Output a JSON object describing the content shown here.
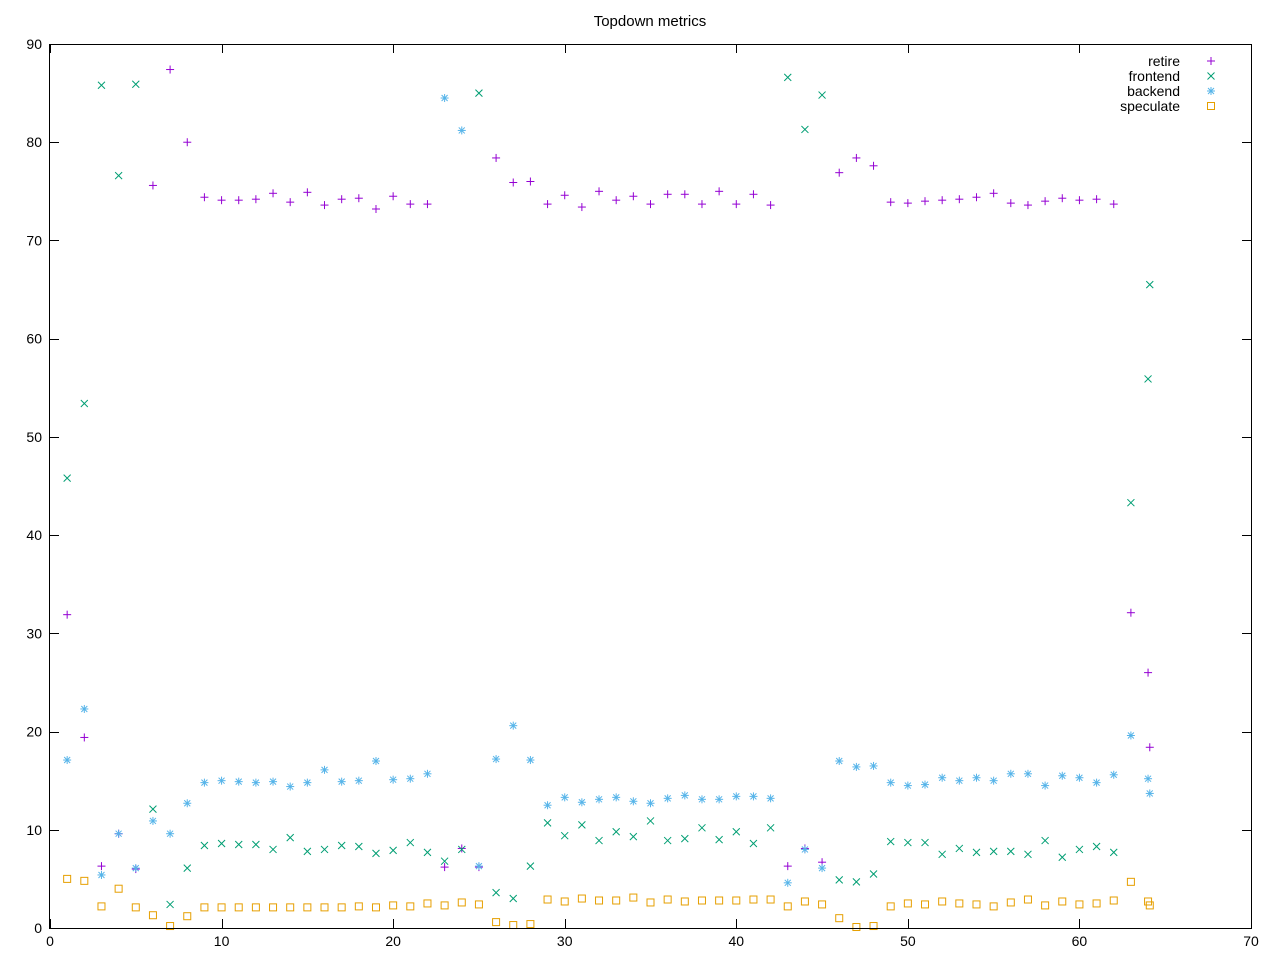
{
  "chart_data": {
    "type": "scatter",
    "title": "Topdown metrics",
    "xlabel": "",
    "ylabel": "",
    "xlim": [
      0,
      70
    ],
    "ylim": [
      0,
      90
    ],
    "x_ticks": [
      0,
      10,
      20,
      30,
      40,
      50,
      60,
      70
    ],
    "y_ticks": [
      0,
      10,
      20,
      30,
      40,
      50,
      60,
      70,
      80,
      90
    ],
    "grid": false,
    "legend_position": "top-right",
    "series": [
      {
        "name": "retire",
        "marker": "plus",
        "color": "#9400d3",
        "points": [
          [
            1,
            31.9
          ],
          [
            2,
            19.4
          ],
          [
            3,
            6.3
          ],
          [
            4,
            9.6
          ],
          [
            5,
            6.0
          ],
          [
            6,
            75.6
          ],
          [
            7,
            87.4
          ],
          [
            8,
            80.0
          ],
          [
            9,
            74.4
          ],
          [
            10,
            74.1
          ],
          [
            11,
            74.1
          ],
          [
            12,
            74.2
          ],
          [
            13,
            74.8
          ],
          [
            14,
            73.9
          ],
          [
            15,
            74.9
          ],
          [
            16,
            73.6
          ],
          [
            17,
            74.2
          ],
          [
            18,
            74.3
          ],
          [
            19,
            73.2
          ],
          [
            20,
            74.5
          ],
          [
            21,
            73.7
          ],
          [
            22,
            73.7
          ],
          [
            23,
            6.2
          ],
          [
            24,
            8.1
          ],
          [
            25,
            6.2
          ],
          [
            26,
            78.4
          ],
          [
            27,
            75.9
          ],
          [
            28,
            76.0
          ],
          [
            29,
            73.7
          ],
          [
            30,
            74.6
          ],
          [
            31,
            73.4
          ],
          [
            32,
            75.0
          ],
          [
            33,
            74.1
          ],
          [
            34,
            74.5
          ],
          [
            35,
            73.7
          ],
          [
            36,
            74.7
          ],
          [
            37,
            74.7
          ],
          [
            38,
            73.7
          ],
          [
            39,
            75.0
          ],
          [
            40,
            73.7
          ],
          [
            41,
            74.7
          ],
          [
            42,
            73.6
          ],
          [
            43,
            6.3
          ],
          [
            44,
            8.1
          ],
          [
            45,
            6.7
          ],
          [
            46,
            76.9
          ],
          [
            47,
            78.4
          ],
          [
            48,
            77.6
          ],
          [
            49,
            73.9
          ],
          [
            50,
            73.8
          ],
          [
            51,
            74.0
          ],
          [
            52,
            74.1
          ],
          [
            53,
            74.2
          ],
          [
            54,
            74.4
          ],
          [
            55,
            74.8
          ],
          [
            56,
            73.8
          ],
          [
            57,
            73.6
          ],
          [
            58,
            74.0
          ],
          [
            59,
            74.3
          ],
          [
            60,
            74.1
          ],
          [
            61,
            74.2
          ],
          [
            62,
            73.7
          ],
          [
            63,
            32.1
          ],
          [
            64,
            26.0
          ],
          [
            64.1,
            18.4
          ]
        ]
      },
      {
        "name": "frontend",
        "marker": "cross",
        "color": "#009e73",
        "points": [
          [
            1,
            45.8
          ],
          [
            2,
            53.4
          ],
          [
            3,
            85.8
          ],
          [
            4,
            76.6
          ],
          [
            5,
            85.9
          ],
          [
            6,
            12.1
          ],
          [
            7,
            2.4
          ],
          [
            8,
            6.1
          ],
          [
            9,
            8.4
          ],
          [
            10,
            8.6
          ],
          [
            11,
            8.5
          ],
          [
            12,
            8.5
          ],
          [
            13,
            8.0
          ],
          [
            14,
            9.2
          ],
          [
            15,
            7.8
          ],
          [
            16,
            8.0
          ],
          [
            17,
            8.4
          ],
          [
            18,
            8.3
          ],
          [
            19,
            7.6
          ],
          [
            20,
            7.9
          ],
          [
            21,
            8.7
          ],
          [
            22,
            7.7
          ],
          [
            23,
            6.8
          ],
          [
            24,
            8.0
          ],
          [
            25,
            85.0
          ],
          [
            26,
            3.6
          ],
          [
            27,
            3.0
          ],
          [
            28,
            6.3
          ],
          [
            29,
            10.7
          ],
          [
            30,
            9.4
          ],
          [
            31,
            10.5
          ],
          [
            32,
            8.9
          ],
          [
            33,
            9.8
          ],
          [
            34,
            9.3
          ],
          [
            35,
            10.9
          ],
          [
            36,
            8.9
          ],
          [
            37,
            9.1
          ],
          [
            38,
            10.2
          ],
          [
            39,
            9.0
          ],
          [
            40,
            9.8
          ],
          [
            41,
            8.6
          ],
          [
            42,
            10.2
          ],
          [
            43,
            86.6
          ],
          [
            44,
            81.3
          ],
          [
            45,
            84.8
          ],
          [
            46,
            4.9
          ],
          [
            47,
            4.7
          ],
          [
            48,
            5.5
          ],
          [
            49,
            8.8
          ],
          [
            50,
            8.7
          ],
          [
            51,
            8.7
          ],
          [
            52,
            7.5
          ],
          [
            53,
            8.1
          ],
          [
            54,
            7.7
          ],
          [
            55,
            7.8
          ],
          [
            56,
            7.8
          ],
          [
            57,
            7.5
          ],
          [
            58,
            8.9
          ],
          [
            59,
            7.2
          ],
          [
            60,
            8.0
          ],
          [
            61,
            8.3
          ],
          [
            62,
            7.7
          ],
          [
            63,
            43.3
          ],
          [
            64,
            55.9
          ],
          [
            64.1,
            65.5
          ]
        ]
      },
      {
        "name": "backend",
        "marker": "star",
        "color": "#56b4e9",
        "points": [
          [
            1,
            17.1
          ],
          [
            2,
            22.3
          ],
          [
            3,
            5.4
          ],
          [
            4,
            9.6
          ],
          [
            5,
            6.1
          ],
          [
            6,
            10.9
          ],
          [
            7,
            9.6
          ],
          [
            8,
            12.7
          ],
          [
            9,
            14.8
          ],
          [
            10,
            15.0
          ],
          [
            11,
            14.9
          ],
          [
            12,
            14.8
          ],
          [
            13,
            14.9
          ],
          [
            14,
            14.4
          ],
          [
            15,
            14.8
          ],
          [
            16,
            16.1
          ],
          [
            17,
            14.9
          ],
          [
            18,
            15.0
          ],
          [
            19,
            17.0
          ],
          [
            20,
            15.1
          ],
          [
            21,
            15.2
          ],
          [
            22,
            15.7
          ],
          [
            23,
            84.5
          ],
          [
            24,
            81.2
          ],
          [
            25,
            6.3
          ],
          [
            26,
            17.2
          ],
          [
            27,
            20.6
          ],
          [
            28,
            17.1
          ],
          [
            29,
            12.5
          ],
          [
            30,
            13.3
          ],
          [
            31,
            12.8
          ],
          [
            32,
            13.1
          ],
          [
            33,
            13.3
          ],
          [
            34,
            12.9
          ],
          [
            35,
            12.7
          ],
          [
            36,
            13.2
          ],
          [
            37,
            13.5
          ],
          [
            38,
            13.1
          ],
          [
            39,
            13.1
          ],
          [
            40,
            13.4
          ],
          [
            41,
            13.4
          ],
          [
            42,
            13.2
          ],
          [
            43,
            4.6
          ],
          [
            44,
            8.0
          ],
          [
            45,
            6.1
          ],
          [
            46,
            17.0
          ],
          [
            47,
            16.4
          ],
          [
            48,
            16.5
          ],
          [
            49,
            14.8
          ],
          [
            50,
            14.5
          ],
          [
            51,
            14.6
          ],
          [
            52,
            15.3
          ],
          [
            53,
            15.0
          ],
          [
            54,
            15.3
          ],
          [
            55,
            15.0
          ],
          [
            56,
            15.7
          ],
          [
            57,
            15.7
          ],
          [
            58,
            14.5
          ],
          [
            59,
            15.5
          ],
          [
            60,
            15.3
          ],
          [
            61,
            14.8
          ],
          [
            62,
            15.6
          ],
          [
            63,
            19.6
          ],
          [
            64,
            15.2
          ],
          [
            64.1,
            13.7
          ]
        ]
      },
      {
        "name": "speculate",
        "marker": "square",
        "color": "#e69f00",
        "points": [
          [
            1,
            5.0
          ],
          [
            2,
            4.8
          ],
          [
            3,
            2.2
          ],
          [
            4,
            4.0
          ],
          [
            5,
            2.1
          ],
          [
            6,
            1.3
          ],
          [
            7,
            0.2
          ],
          [
            8,
            1.2
          ],
          [
            9,
            2.1
          ],
          [
            10,
            2.1
          ],
          [
            11,
            2.1
          ],
          [
            12,
            2.1
          ],
          [
            13,
            2.1
          ],
          [
            14,
            2.1
          ],
          [
            15,
            2.1
          ],
          [
            16,
            2.1
          ],
          [
            17,
            2.1
          ],
          [
            18,
            2.2
          ],
          [
            19,
            2.1
          ],
          [
            20,
            2.3
          ],
          [
            21,
            2.2
          ],
          [
            22,
            2.5
          ],
          [
            23,
            2.3
          ],
          [
            24,
            2.6
          ],
          [
            25,
            2.4
          ],
          [
            26,
            0.6
          ],
          [
            27,
            0.3
          ],
          [
            28,
            0.4
          ],
          [
            29,
            2.9
          ],
          [
            30,
            2.7
          ],
          [
            31,
            3.0
          ],
          [
            32,
            2.8
          ],
          [
            33,
            2.8
          ],
          [
            34,
            3.1
          ],
          [
            35,
            2.6
          ],
          [
            36,
            2.9
          ],
          [
            37,
            2.7
          ],
          [
            38,
            2.8
          ],
          [
            39,
            2.8
          ],
          [
            40,
            2.8
          ],
          [
            41,
            2.9
          ],
          [
            42,
            2.9
          ],
          [
            43,
            2.2
          ],
          [
            44,
            2.7
          ],
          [
            45,
            2.4
          ],
          [
            46,
            1.0
          ],
          [
            47,
            0.1
          ],
          [
            48,
            0.2
          ],
          [
            49,
            2.2
          ],
          [
            50,
            2.5
          ],
          [
            51,
            2.4
          ],
          [
            52,
            2.7
          ],
          [
            53,
            2.5
          ],
          [
            54,
            2.4
          ],
          [
            55,
            2.2
          ],
          [
            56,
            2.6
          ],
          [
            57,
            2.9
          ],
          [
            58,
            2.3
          ],
          [
            59,
            2.7
          ],
          [
            60,
            2.4
          ],
          [
            61,
            2.5
          ],
          [
            62,
            2.8
          ],
          [
            63,
            4.7
          ],
          [
            64,
            2.7
          ],
          [
            64.1,
            2.3
          ]
        ]
      }
    ]
  }
}
